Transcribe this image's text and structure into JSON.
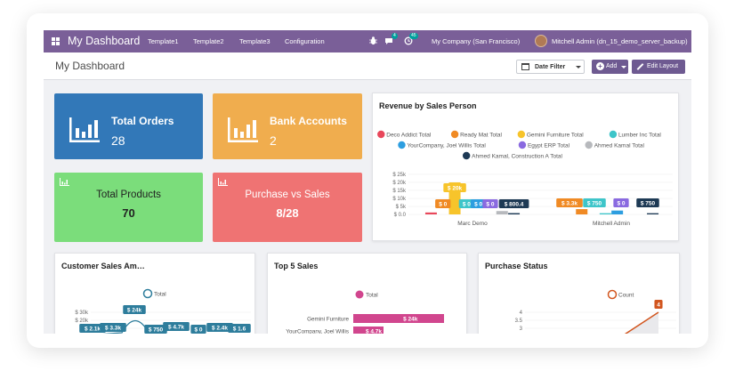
{
  "topnav": {
    "brand": "My Dashboard",
    "links": [
      "Template1",
      "Template2",
      "Template3",
      "Configuration"
    ],
    "chat_badge": "4",
    "activity_badge": "45",
    "company": "My Company (San Francisco)",
    "user": "Mitchell Admin (dn_15_demo_server_backup)"
  },
  "controlbar": {
    "title": "My Dashboard",
    "date_filter": "Date Filter",
    "add_label": "Add",
    "edit_label": "Edit Layout"
  },
  "tiles": [
    {
      "title": "Total Orders",
      "value": "28",
      "color": "#3278b8"
    },
    {
      "title": "Bank Accounts",
      "value": "2",
      "color": "#f0ad4e"
    },
    {
      "title": "Total Products",
      "value": "70",
      "color": "#7bdd7b"
    },
    {
      "title": "Purchase vs Sales",
      "value": "8/28",
      "color": "#ef7373"
    }
  ],
  "chart_data": [
    {
      "type": "bar",
      "title": "Revenue by Sales Person",
      "categories": [
        "Marc Demo",
        "Mitchell Admin"
      ],
      "yticks": [
        "$ 0.0",
        "$ 5k",
        "$ 10k",
        "$ 15k",
        "$ 20k",
        "$ 25k"
      ],
      "ylim": [
        0,
        25000
      ],
      "legend_position": "top",
      "series": [
        {
          "name": "Deco Addict Total",
          "color": "#e8475b",
          "values": [
            1200,
            0
          ]
        },
        {
          "name": "Ready Mat Total",
          "color": "#f08a24",
          "values": [
            0,
            3300
          ]
        },
        {
          "name": "Gemini Furniture Total",
          "color": "#f7c42b",
          "values": [
            20000,
            0
          ]
        },
        {
          "name": "Lumber Inc Total",
          "color": "#3ec5c9",
          "values": [
            0,
            750
          ]
        },
        {
          "name": "YourCompany, Joel Willis Total",
          "color": "#2d9ee0",
          "values": [
            0,
            2400
          ]
        },
        {
          "name": "Egypt ERP Total",
          "color": "#8a6ae0",
          "values": [
            0,
            0
          ]
        },
        {
          "name": "Ahmed Kamal Total",
          "color": "#b7b9bd",
          "values": [
            2100,
            0
          ]
        },
        {
          "name": "Ahmed Kamal, Construction A Total",
          "color": "#1e3a55",
          "values": [
            800.4,
            750
          ]
        }
      ],
      "data_labels": {
        "marc": [
          "$ 0",
          "$ 20k",
          "$ 0",
          "$ 0",
          "$ 0",
          "$ 800.4"
        ],
        "mitchell": [
          "$ 3.3k",
          "$ 750",
          "$ 0",
          "$ 750"
        ]
      }
    },
    {
      "type": "line",
      "title": "Customer Sales Am…",
      "legend": "Total",
      "yticks": [
        "$ 30k",
        "$ 20k",
        "$ 1"
      ],
      "labels": [
        "$ 2.1k",
        "$ 3.3k",
        "$ 24k",
        "$ 750",
        "$ 4.7k",
        "$ 0",
        "$ 2.4k",
        "$ 1.6"
      ]
    },
    {
      "type": "bar",
      "title": "Top 5 Sales",
      "legend": "Total",
      "categories": [
        "Gemini Furniture",
        "YourCompany, Joel Willis"
      ],
      "values": [
        24000,
        4700
      ],
      "labels": [
        "$ 24k",
        "$ 4.7k"
      ]
    },
    {
      "type": "line",
      "title": "Purchase Status",
      "legend": "Count",
      "yticks": [
        "4",
        "3.5",
        "3",
        "2.5"
      ],
      "points": [
        {
          "label": "4",
          "value": 4
        }
      ],
      "marker_value": "2"
    }
  ],
  "colors": {
    "nav": "#7a5f98",
    "button": "#6e5a91",
    "line_series": "#2e7d9c",
    "top5_bar": "#d1468e",
    "purchase_line": "#d2561f"
  }
}
